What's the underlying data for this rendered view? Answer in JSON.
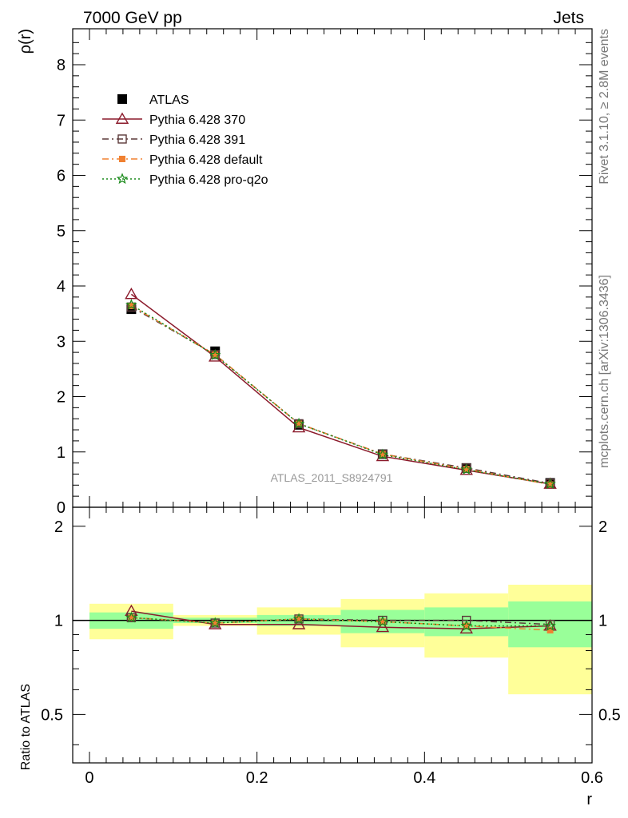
{
  "header": {
    "left_title": "7000 GeV pp",
    "right_title": "Jets"
  },
  "side_labels": {
    "rivet": "Rivet 3.1.10, ≥ 2.8M events",
    "mcplots": "mcplots.cern.ch [arXiv:1306.3436]"
  },
  "analysis_label": "ATLAS_2011_S8924791",
  "chart_data": [
    {
      "type": "line",
      "panel": "main",
      "ylabel": "ρ(r)",
      "xlim": [
        -0.02,
        0.6
      ],
      "ylim": [
        0,
        8.65
      ],
      "y_ticks": [
        0,
        1,
        2,
        3,
        4,
        5,
        6,
        7,
        8
      ],
      "x": [
        0.05,
        0.15,
        0.25,
        0.35,
        0.45,
        0.55
      ],
      "series": [
        {
          "name": "ATLAS",
          "color": "#000000",
          "marker": "filled-square",
          "values": [
            3.58,
            2.82,
            1.49,
            0.96,
            0.71,
            0.44
          ]
        },
        {
          "name": "Pythia 6.428 370",
          "color": "#8b1a2b",
          "marker": "open-triangle",
          "line": "solid",
          "values": [
            3.85,
            2.72,
            1.44,
            0.92,
            0.67,
            0.42
          ]
        },
        {
          "name": "Pythia 6.428 391",
          "color": "#5c3a3a",
          "marker": "open-square",
          "line": "dash-dot",
          "values": [
            3.62,
            2.76,
            1.51,
            0.96,
            0.71,
            0.43
          ]
        },
        {
          "name": "Pythia 6.428 default",
          "color": "#f08030",
          "marker": "filled-square-small",
          "line": "dash-dot",
          "values": [
            3.64,
            2.76,
            1.51,
            0.96,
            0.69,
            0.41
          ]
        },
        {
          "name": "Pythia 6.428 pro-q2o",
          "color": "#1a8a1a",
          "marker": "open-star",
          "line": "dotted",
          "values": [
            3.66,
            2.75,
            1.51,
            0.95,
            0.68,
            0.42
          ]
        }
      ],
      "legend_position": "top-left",
      "grid": false
    },
    {
      "type": "line",
      "panel": "ratio",
      "ylabel": "Ratio to ATLAS",
      "xlabel": "r",
      "xlim": [
        -0.02,
        0.6
      ],
      "ylim": [
        0.35,
        2.3
      ],
      "y_ticks": [
        0.5,
        1,
        2
      ],
      "x_ticks": [
        0,
        0.2,
        0.4,
        0.6
      ],
      "reference_line": 1,
      "uncertainty_bands": {
        "bins": [
          [
            0.0,
            0.1
          ],
          [
            0.1,
            0.2
          ],
          [
            0.2,
            0.3
          ],
          [
            0.3,
            0.4
          ],
          [
            0.4,
            0.5
          ],
          [
            0.5,
            0.6
          ]
        ],
        "inner": {
          "color": "#99ff99",
          "low": [
            0.94,
            0.98,
            0.96,
            0.91,
            0.89,
            0.82
          ],
          "high": [
            1.06,
            1.02,
            1.04,
            1.08,
            1.1,
            1.15
          ]
        },
        "outer": {
          "color": "#ffff99",
          "low": [
            0.87,
            0.96,
            0.9,
            0.82,
            0.76,
            0.58
          ],
          "high": [
            1.13,
            1.04,
            1.1,
            1.17,
            1.22,
            1.3
          ]
        }
      },
      "x": [
        0.05,
        0.15,
        0.25,
        0.35,
        0.45,
        0.55
      ],
      "series": [
        {
          "name": "Pythia 6.428 370",
          "color": "#8b1a2b",
          "marker": "open-triangle",
          "line": "solid",
          "values": [
            1.07,
            0.97,
            0.97,
            0.95,
            0.94,
            0.96
          ]
        },
        {
          "name": "Pythia 6.428 391",
          "color": "#5c3a3a",
          "marker": "open-square",
          "line": "dash-dot",
          "values": [
            1.02,
            0.98,
            1.01,
            1.0,
            1.0,
            0.97
          ]
        },
        {
          "name": "Pythia 6.428 default",
          "color": "#f08030",
          "marker": "filled-square-small",
          "line": "dash-dot",
          "values": [
            1.02,
            0.98,
            1.01,
            0.99,
            0.96,
            0.93
          ]
        },
        {
          "name": "Pythia 6.428 pro-q2o",
          "color": "#1a8a1a",
          "marker": "open-star",
          "line": "dotted",
          "values": [
            1.02,
            0.98,
            1.01,
            0.99,
            0.96,
            0.96
          ]
        }
      ]
    }
  ]
}
